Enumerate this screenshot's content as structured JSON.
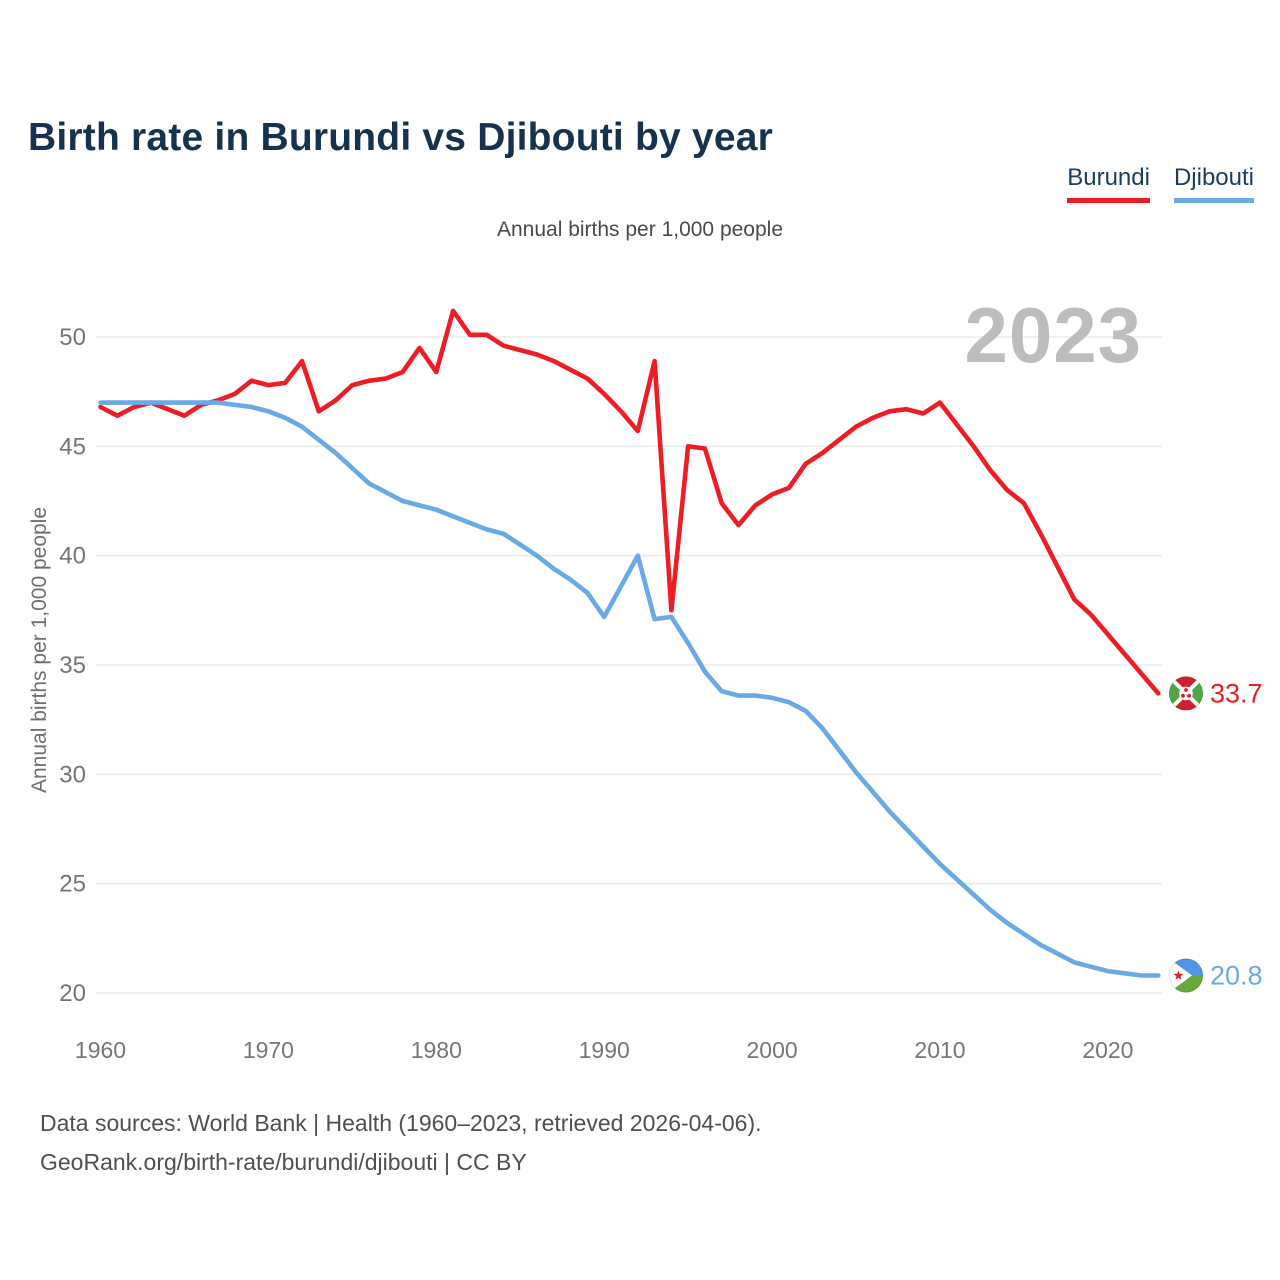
{
  "header": {
    "title": "Birth rate in Burundi vs Djibouti by year",
    "legend": [
      {
        "label": "Burundi",
        "color": "#ee1d25"
      },
      {
        "label": "Djibouti",
        "color": "#68a9e6"
      }
    ]
  },
  "chart_data": {
    "type": "line",
    "subtitle": "Annual births per 1,000 people",
    "ylabel": "Annual births per 1,000 people",
    "watermark": "2023",
    "grid": true,
    "legend_position": "top-right",
    "x_ticks": [
      1960,
      1970,
      1980,
      1990,
      2000,
      2010,
      2020
    ],
    "y_ticks": [
      20,
      25,
      30,
      35,
      40,
      45,
      50
    ],
    "xlim": [
      1960,
      2023
    ],
    "ylim": [
      18.5,
      52.5
    ],
    "years": [
      1960,
      1961,
      1962,
      1963,
      1964,
      1965,
      1966,
      1967,
      1968,
      1969,
      1970,
      1971,
      1972,
      1973,
      1974,
      1975,
      1976,
      1977,
      1978,
      1979,
      1980,
      1981,
      1982,
      1983,
      1984,
      1985,
      1986,
      1987,
      1988,
      1989,
      1990,
      1991,
      1992,
      1993,
      1994,
      1995,
      1996,
      1997,
      1998,
      1999,
      2000,
      2001,
      2002,
      2003,
      2004,
      2005,
      2006,
      2007,
      2008,
      2009,
      2010,
      2011,
      2012,
      2013,
      2014,
      2015,
      2016,
      2017,
      2018,
      2019,
      2020,
      2021,
      2022,
      2023
    ],
    "series": [
      {
        "name": "Burundi",
        "color": "#ee1d25",
        "end_label": "33.7",
        "end_value": 33.7,
        "flag": "burundi",
        "values": [
          46.8,
          46.4,
          46.8,
          47.0,
          46.7,
          46.4,
          46.9,
          47.1,
          47.4,
          48.0,
          47.8,
          47.9,
          48.9,
          46.6,
          47.1,
          47.8,
          48.0,
          48.1,
          48.4,
          49.5,
          48.4,
          51.2,
          50.1,
          50.1,
          49.6,
          49.4,
          49.2,
          48.9,
          48.5,
          48.1,
          47.4,
          46.6,
          45.7,
          48.9,
          37.5,
          45.0,
          44.9,
          42.4,
          41.4,
          42.3,
          42.8,
          43.1,
          44.2,
          44.7,
          45.3,
          45.9,
          46.3,
          46.6,
          46.7,
          46.5,
          47.0,
          46.0,
          45.0,
          43.9,
          43.0,
          42.4,
          41.0,
          39.5,
          38.0,
          37.3,
          36.4,
          35.5,
          34.6,
          33.7
        ]
      },
      {
        "name": "Djibouti",
        "color": "#68a9e6",
        "end_label": "20.8",
        "end_value": 20.8,
        "flag": "djibouti",
        "values": [
          47.0,
          47.0,
          47.0,
          47.0,
          47.0,
          47.0,
          47.0,
          47.0,
          46.9,
          46.8,
          46.6,
          46.3,
          45.9,
          45.3,
          44.7,
          44.0,
          43.3,
          42.9,
          42.5,
          42.3,
          42.1,
          41.8,
          41.5,
          41.2,
          41.0,
          40.5,
          40.0,
          39.4,
          38.9,
          38.3,
          37.2,
          38.6,
          40.0,
          37.1,
          37.2,
          36.0,
          34.7,
          33.8,
          33.6,
          33.6,
          33.5,
          33.3,
          32.9,
          32.1,
          31.1,
          30.1,
          29.2,
          28.3,
          27.5,
          26.7,
          25.9,
          25.2,
          24.5,
          23.8,
          23.2,
          22.7,
          22.2,
          21.8,
          21.4,
          21.2,
          21.0,
          20.9,
          20.8,
          20.8
        ]
      }
    ],
    "flag_colors": {
      "burundi": {
        "red": "#d01f2e",
        "green": "#53a447",
        "white": "#ffffff"
      },
      "djibouti": {
        "blue": "#4e95e4",
        "green": "#66a83c",
        "white": "#ffffff",
        "star": "#d7202c"
      }
    }
  },
  "footer": {
    "line1": "Data sources: World Bank | Health (1960–2023, retrieved 2026-04-06).",
    "line2": "GeoRank.org/birth-rate/burundi/djibouti | CC BY"
  }
}
